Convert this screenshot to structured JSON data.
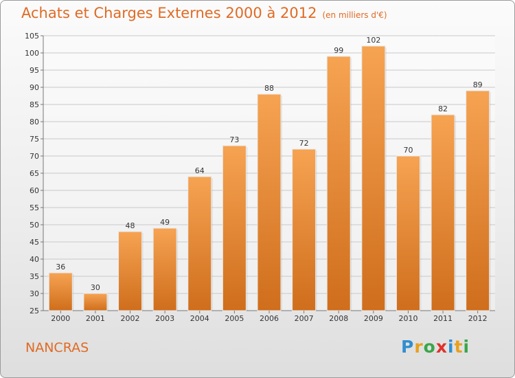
{
  "title": "Achats et Charges Externes 2000 à 2012",
  "subtitle": "(en milliers d'€)",
  "commune": "NANCRAS",
  "brand": {
    "letters": [
      "P",
      "r",
      "o",
      "x",
      "i",
      "t",
      "i"
    ],
    "colors": [
      "#2f8fd0",
      "#e8a020",
      "#3aa64a",
      "#e0312b",
      "#2f8fd0",
      "#e8a020",
      "#3aa64a"
    ]
  },
  "colors": {
    "bar_top": "#f6a352",
    "bar_bottom": "#cf6e1c",
    "title": "#e06a24"
  },
  "chart_data": {
    "type": "bar",
    "categories": [
      "2000",
      "2001",
      "2002",
      "2003",
      "2004",
      "2005",
      "2006",
      "2007",
      "2008",
      "2009",
      "2010",
      "2011",
      "2012"
    ],
    "values": [
      36,
      30,
      48,
      49,
      64,
      73,
      88,
      72,
      99,
      102,
      70,
      82,
      89
    ],
    "ylim": [
      25,
      105
    ],
    "yticks": [
      25,
      30,
      35,
      40,
      45,
      50,
      55,
      60,
      65,
      70,
      75,
      80,
      85,
      90,
      95,
      100,
      105
    ],
    "grid": true
  }
}
